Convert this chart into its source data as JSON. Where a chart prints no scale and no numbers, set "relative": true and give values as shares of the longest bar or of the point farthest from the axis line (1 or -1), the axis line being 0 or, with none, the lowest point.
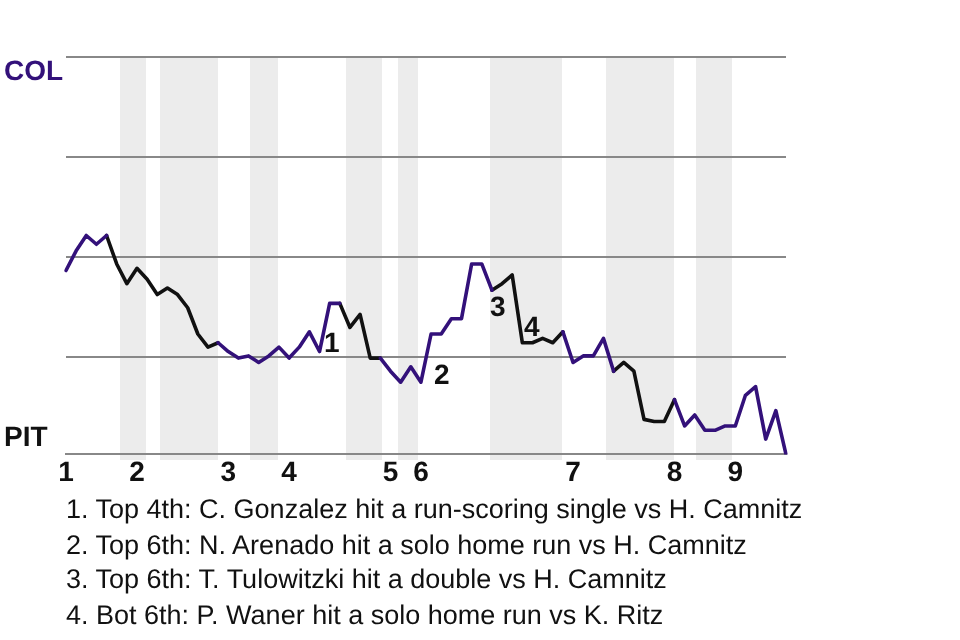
{
  "chart_data": {
    "type": "line",
    "relative": true,
    "categories": [
      "1",
      null,
      null,
      null,
      null,
      null,
      null,
      "2",
      null,
      null,
      null,
      null,
      null,
      null,
      null,
      null,
      "3",
      null,
      null,
      null,
      null,
      null,
      "4",
      null,
      null,
      null,
      null,
      null,
      null,
      null,
      null,
      null,
      "5",
      null,
      null,
      "6",
      null,
      null,
      null,
      null,
      null,
      null,
      null,
      null,
      null,
      null,
      null,
      null,
      null,
      null,
      "7",
      null,
      null,
      null,
      null,
      null,
      null,
      null,
      null,
      null,
      "8",
      null,
      null,
      null,
      null,
      null,
      "9",
      null,
      null,
      null,
      null,
      null
    ],
    "series": [
      {
        "color": "#33117a",
        "values": [
          0.84,
          0.93,
          1,
          0.96,
          1,
          null,
          null,
          null,
          null,
          null,
          null,
          null,
          null,
          null,
          null,
          0.51,
          0.47,
          0.44,
          0.45,
          0.42,
          0.45,
          0.49,
          0.44,
          0.49,
          0.56,
          0.47,
          0.69,
          0.69,
          null,
          null,
          null,
          0.44,
          0.38,
          0.33,
          0.4,
          0.33,
          0.55,
          0.55,
          0.62,
          0.62,
          0.87,
          0.87,
          0.75,
          null,
          null,
          null,
          null,
          null,
          null,
          0.56,
          0.42,
          0.45,
          0.45,
          0.53,
          0.38,
          null,
          null,
          null,
          null,
          null,
          0.25,
          0.13,
          0.18,
          0.11,
          0.11,
          0.13,
          0.13,
          0.27,
          0.31,
          0.07,
          0.2,
          0
        ]
      },
      {
        "color": "#111111",
        "values": [
          null,
          null,
          null,
          null,
          1,
          0.87,
          0.78,
          0.85,
          0.8,
          0.73,
          0.76,
          0.73,
          0.67,
          0.55,
          0.49,
          0.51,
          null,
          null,
          null,
          null,
          null,
          null,
          null,
          null,
          null,
          null,
          null,
          0.69,
          0.58,
          0.64,
          0.44,
          0.44,
          null,
          null,
          null,
          null,
          null,
          null,
          null,
          null,
          null,
          null,
          0.75,
          0.78,
          0.82,
          0.51,
          0.51,
          0.53,
          0.51,
          0.56,
          null,
          null,
          null,
          null,
          0.38,
          0.42,
          0.38,
          0.16,
          0.15,
          0.15,
          0.25,
          null,
          null,
          null,
          null,
          null,
          null,
          null,
          null,
          null,
          null,
          null
        ]
      }
    ],
    "ref_lines": [
      {
        "axis": "y",
        "value": 0.45,
        "color": "#888888"
      },
      {
        "axis": "y",
        "value": 0.91,
        "color": "#888888"
      },
      {
        "axis": "y",
        "value": 1.36,
        "color": "#888888"
      },
      {
        "axis": "y",
        "value": 1.82,
        "color": "#888888"
      }
    ],
    "legend": false,
    "marker": "none",
    "line_style": "solid",
    "annotations": [
      "COL",
      "PIT",
      "1",
      "2",
      "3",
      "4",
      "1. Top 4th: C. Gonzalez hit a run-scoring single vs H. Camnitz",
      "2. Top 6th: N. Arenado hit a solo home run vs H. Camnitz",
      "3. Top 6th: T. Tulowitzki hit a double vs H. Camnitz",
      "4. Bot 6th: P. Waner hit a solo home run vs K. Ritz"
    ]
  }
}
